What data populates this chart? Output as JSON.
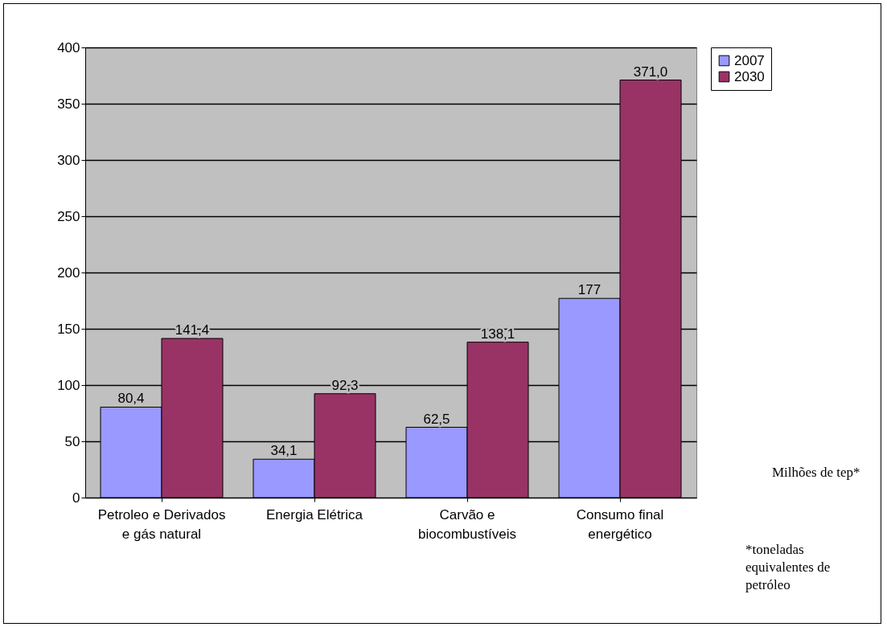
{
  "chart_data": {
    "type": "bar",
    "categories": [
      "Petroleo e Derivados e gás natural",
      "Energia Elétrica",
      "Carvão e biocombustíveis",
      "Consumo final energético"
    ],
    "series": [
      {
        "name": "2007",
        "color": "#9999ff",
        "values": [
          80.4,
          34.1,
          62.5,
          177
        ],
        "value_labels": [
          "80,4",
          "34,1",
          "62,5",
          "177"
        ]
      },
      {
        "name": "2030",
        "color": "#993366",
        "values": [
          141.4,
          92.3,
          138.1,
          371.0
        ],
        "value_labels": [
          "141,4",
          "92,3",
          "138,1",
          "371,0"
        ]
      }
    ],
    "ylim": [
      0,
      400
    ],
    "yticks": [
      0,
      50,
      100,
      150,
      200,
      250,
      300,
      350,
      400
    ],
    "grid": "y",
    "legend": "right",
    "annotations": [
      "Milhões de tep*",
      "*toneladas equivalentes de petróleo"
    ]
  }
}
